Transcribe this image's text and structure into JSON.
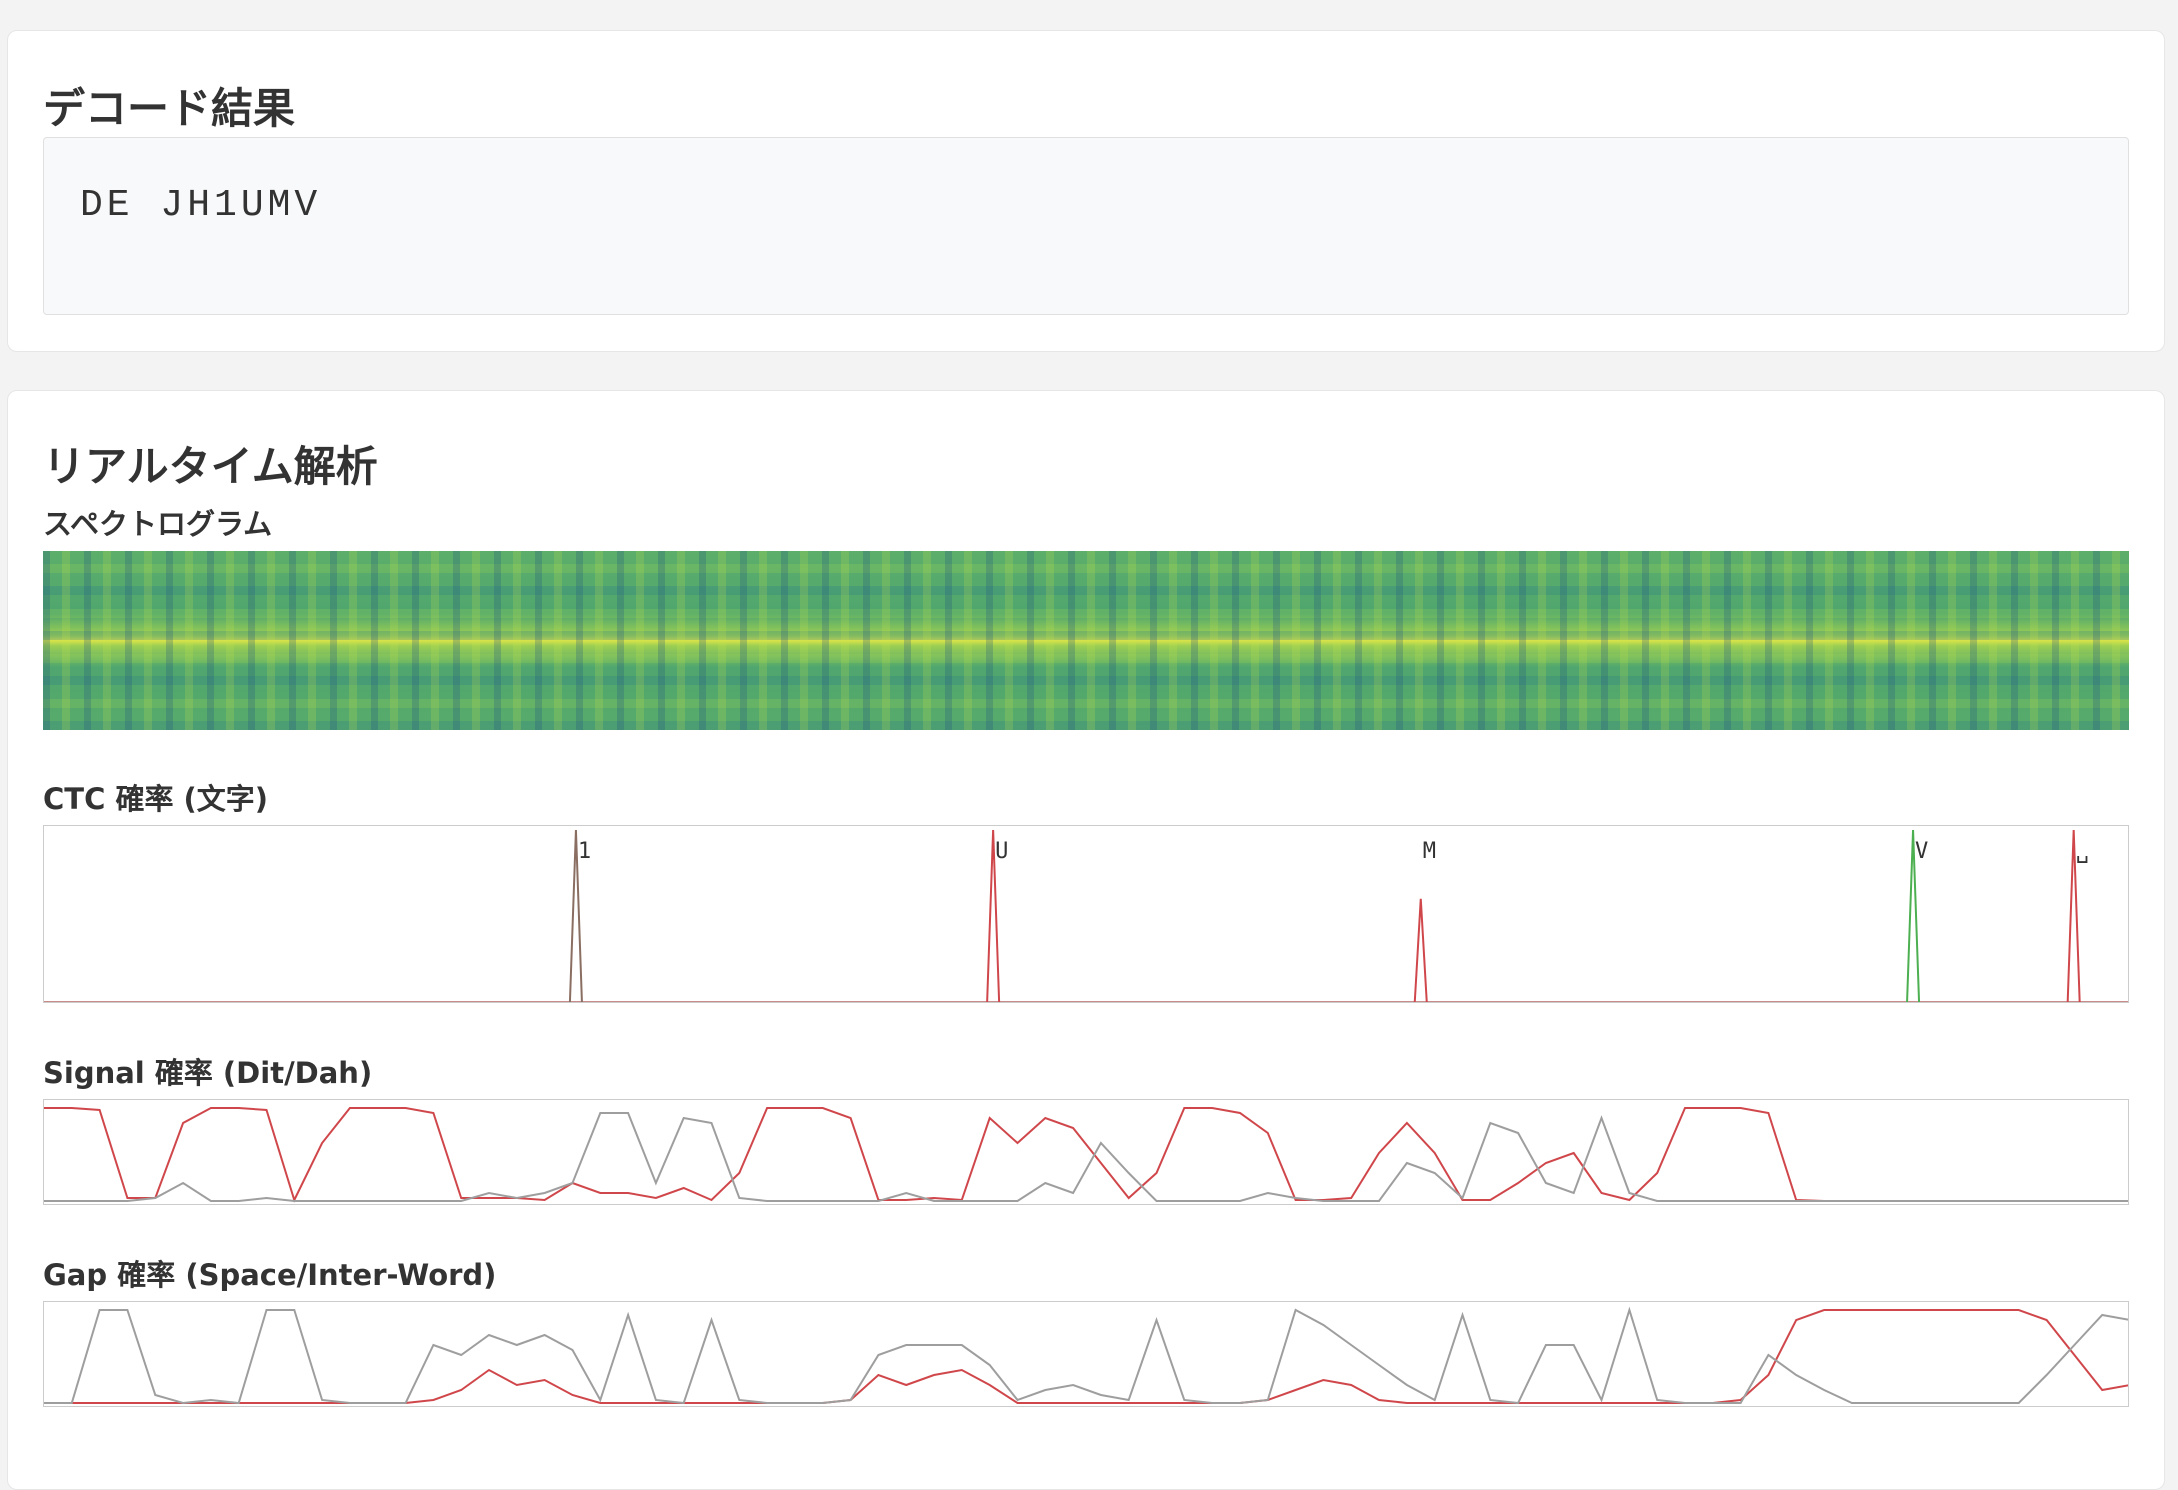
{
  "decode": {
    "title": "デコード結果",
    "text": "DE JH1UMV"
  },
  "analysis": {
    "title": "リアルタイム解析",
    "spectrogram_label": "スペクトログラム"
  },
  "ctc": {
    "label": "CTC 確率 (文字)",
    "type": "peaks",
    "xlim": [
      0,
      100
    ],
    "ylim": [
      0,
      1
    ],
    "peaks": [
      {
        "label": "1",
        "x": 25.5,
        "value": 1,
        "color": "#8a6e62"
      },
      {
        "label": "U",
        "x": 45.5,
        "value": 1,
        "color": "#d0474b"
      },
      {
        "label": "M",
        "x": 66,
        "value": 0.6,
        "color": "#d0474b"
      },
      {
        "label": "V",
        "x": 89.6,
        "value": 1,
        "color": "#4caf50"
      },
      {
        "label": "␣",
        "x": 97.3,
        "value": 1,
        "color": "#d0474b"
      }
    ]
  },
  "signal": {
    "label": "Signal 確率 (Dit/Dah)",
    "type": "line",
    "ylim": [
      0,
      1
    ],
    "series": [
      {
        "color": "#d0474b",
        "values": [
          0.95,
          0.95,
          0.93,
          0.05,
          0.05,
          0.8,
          0.95,
          0.95,
          0.93,
          0.03,
          0.6,
          0.95,
          0.95,
          0.95,
          0.9,
          0.05,
          0.05,
          0.05,
          0.03,
          0.2,
          0.1,
          0.1,
          0.05,
          0.15,
          0.03,
          0.3,
          0.95,
          0.95,
          0.95,
          0.85,
          0.03,
          0.03,
          0.05,
          0.03,
          0.85,
          0.6,
          0.85,
          0.75,
          0.4,
          0.05,
          0.3,
          0.95,
          0.95,
          0.9,
          0.7,
          0.03,
          0.03,
          0.05,
          0.5,
          0.8,
          0.5,
          0.03,
          0.03,
          0.2,
          0.4,
          0.5,
          0.1,
          0.03,
          0.3,
          0.95,
          0.95,
          0.95,
          0.9,
          0.03,
          0.02,
          0.02,
          0.02,
          0.02,
          0.02,
          0.02,
          0.02,
          0.02,
          0.02,
          0.02,
          0.02,
          0.02
        ]
      },
      {
        "color": "#9e9e9e",
        "values": [
          0.02,
          0.02,
          0.02,
          0.02,
          0.05,
          0.2,
          0.02,
          0.02,
          0.05,
          0.02,
          0.02,
          0.02,
          0.02,
          0.02,
          0.02,
          0.02,
          0.1,
          0.05,
          0.1,
          0.2,
          0.9,
          0.9,
          0.2,
          0.85,
          0.8,
          0.05,
          0.02,
          0.02,
          0.02,
          0.02,
          0.02,
          0.1,
          0.02,
          0.02,
          0.02,
          0.02,
          0.2,
          0.1,
          0.6,
          0.3,
          0.02,
          0.02,
          0.02,
          0.02,
          0.1,
          0.05,
          0.02,
          0.02,
          0.02,
          0.4,
          0.3,
          0.05,
          0.8,
          0.7,
          0.2,
          0.1,
          0.85,
          0.1,
          0.02,
          0.02,
          0.02,
          0.02,
          0.02,
          0.02,
          0.02,
          0.02,
          0.02,
          0.02,
          0.02,
          0.02,
          0.02,
          0.02,
          0.02,
          0.02,
          0.02,
          0.02
        ]
      }
    ]
  },
  "gap": {
    "label": "Gap 確率 (Space/Inter-Word)",
    "type": "line",
    "ylim": [
      0,
      1
    ],
    "series": [
      {
        "color": "#d0474b",
        "values": [
          0.02,
          0.02,
          0.02,
          0.02,
          0.02,
          0.02,
          0.02,
          0.02,
          0.02,
          0.02,
          0.02,
          0.02,
          0.02,
          0.02,
          0.05,
          0.15,
          0.35,
          0.2,
          0.25,
          0.1,
          0.02,
          0.02,
          0.02,
          0.02,
          0.02,
          0.02,
          0.02,
          0.02,
          0.02,
          0.05,
          0.3,
          0.2,
          0.3,
          0.35,
          0.2,
          0.02,
          0.02,
          0.02,
          0.02,
          0.02,
          0.02,
          0.02,
          0.02,
          0.02,
          0.05,
          0.15,
          0.25,
          0.2,
          0.05,
          0.02,
          0.02,
          0.02,
          0.02,
          0.02,
          0.02,
          0.02,
          0.02,
          0.02,
          0.02,
          0.02,
          0.02,
          0.05,
          0.3,
          0.85,
          0.95,
          0.95,
          0.95,
          0.95,
          0.95,
          0.95,
          0.95,
          0.95,
          0.85,
          0.5,
          0.15,
          0.2
        ]
      },
      {
        "color": "#9e9e9e",
        "values": [
          0.02,
          0.02,
          0.95,
          0.95,
          0.1,
          0.02,
          0.05,
          0.02,
          0.95,
          0.95,
          0.05,
          0.02,
          0.02,
          0.02,
          0.6,
          0.5,
          0.7,
          0.6,
          0.7,
          0.55,
          0.05,
          0.9,
          0.05,
          0.02,
          0.85,
          0.05,
          0.02,
          0.02,
          0.02,
          0.05,
          0.5,
          0.6,
          0.6,
          0.6,
          0.4,
          0.05,
          0.15,
          0.2,
          0.1,
          0.05,
          0.85,
          0.05,
          0.02,
          0.02,
          0.05,
          0.95,
          0.8,
          0.6,
          0.4,
          0.2,
          0.05,
          0.9,
          0.05,
          0.02,
          0.6,
          0.6,
          0.05,
          0.95,
          0.05,
          0.02,
          0.02,
          0.02,
          0.5,
          0.3,
          0.15,
          0.02,
          0.02,
          0.02,
          0.02,
          0.02,
          0.02,
          0.02,
          0.3,
          0.6,
          0.9,
          0.85
        ]
      }
    ]
  }
}
